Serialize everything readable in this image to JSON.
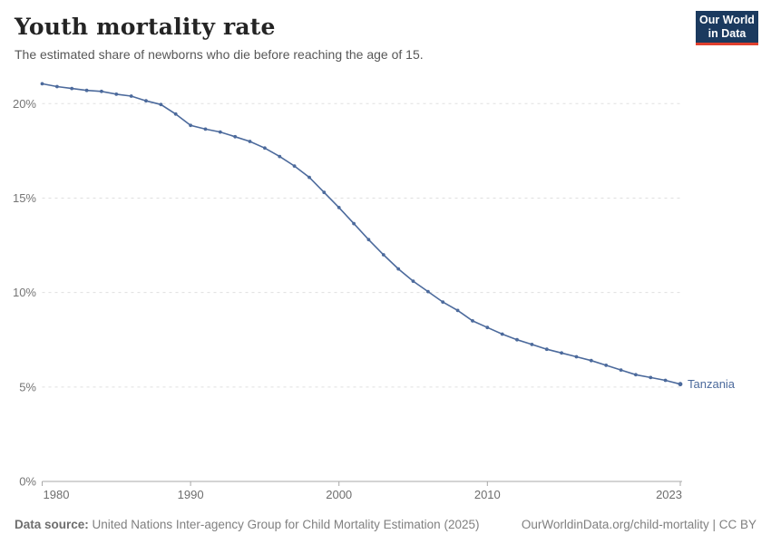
{
  "header": {
    "title": "Youth mortality rate",
    "subtitle": "The estimated share of newborns who die before reaching the age of 15."
  },
  "logo": {
    "line1": "Our World",
    "line2": "in Data",
    "bg_color": "#1b3a5f",
    "accent_color": "#e0402e"
  },
  "chart_data": {
    "type": "line",
    "title": "Youth mortality rate",
    "xlabel": "",
    "ylabel": "",
    "xlim": [
      1980,
      2023
    ],
    "ylim": [
      0,
      21.3
    ],
    "grid": "horizontal-dashed",
    "legend_position": "end-of-line-label",
    "xticks": [
      1980,
      1990,
      2000,
      2010,
      2023
    ],
    "yticks": [
      0,
      5,
      10,
      15,
      20
    ],
    "ytick_suffix": "%",
    "x": [
      1980,
      1981,
      1982,
      1983,
      1984,
      1985,
      1986,
      1987,
      1988,
      1989,
      1990,
      1991,
      1992,
      1993,
      1994,
      1995,
      1996,
      1997,
      1998,
      1999,
      2000,
      2001,
      2002,
      2003,
      2004,
      2005,
      2006,
      2007,
      2008,
      2009,
      2010,
      2011,
      2012,
      2013,
      2014,
      2015,
      2016,
      2017,
      2018,
      2019,
      2020,
      2021,
      2022,
      2023
    ],
    "series": [
      {
        "name": "Tanzania",
        "color": "#4C6A9C",
        "values": [
          21.05,
          20.9,
          20.8,
          20.7,
          20.65,
          20.5,
          20.4,
          20.15,
          19.95,
          19.45,
          18.85,
          18.65,
          18.5,
          18.25,
          18.0,
          17.65,
          17.2,
          16.7,
          16.1,
          15.3,
          14.5,
          13.65,
          12.8,
          12.0,
          11.25,
          10.6,
          10.05,
          9.5,
          9.05,
          8.5,
          8.15,
          7.8,
          7.5,
          7.25,
          7.0,
          6.8,
          6.6,
          6.4,
          6.15,
          5.9,
          5.65,
          5.5,
          5.35,
          5.15
        ]
      }
    ]
  },
  "footer": {
    "source_label": "Data source:",
    "source_text": " United Nations Inter-agency Group for Child Mortality Estimation (2025)",
    "license_text": "OurWorldinData.org/child-mortality | CC BY"
  }
}
